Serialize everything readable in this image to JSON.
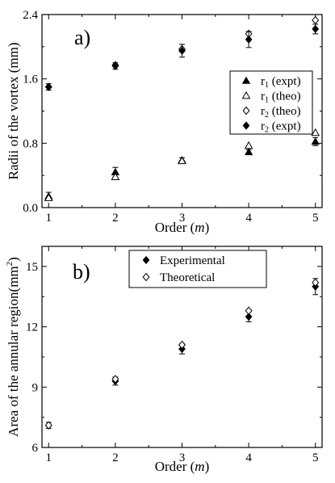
{
  "chart_data": [
    {
      "type": "scatter",
      "panel_label": "a)",
      "xlabel": "Order (",
      "xlabel_var": "m",
      "xlabel_end": ")",
      "ylabel": "Radii of the vortex (mm)",
      "xlim": [
        0.9,
        5.1
      ],
      "ylim": [
        0.0,
        2.4
      ],
      "xticks": [
        1,
        2,
        3,
        4,
        5
      ],
      "yticks": [
        0.0,
        0.8,
        1.6,
        2.4
      ],
      "ytick_labels": [
        "0.0",
        "0.8",
        "1.6",
        "2.4"
      ],
      "legend_position": "upper-right",
      "series": [
        {
          "base": "r",
          "sub": "1",
          "suffix": " (expt)",
          "marker": "triangle-filled",
          "x": [
            1,
            2,
            3,
            4,
            5
          ],
          "y": [
            0.14,
            0.44,
            0.59,
            0.69,
            0.82
          ],
          "err": [
            0.05,
            0.06,
            0.03,
            0.03,
            0.05
          ]
        },
        {
          "base": "r",
          "sub": "1",
          "suffix": " (theo)",
          "marker": "triangle-open",
          "x": [
            1,
            2,
            3,
            4,
            5
          ],
          "y": [
            0.12,
            0.38,
            0.58,
            0.77,
            0.93
          ],
          "err": [
            0,
            0,
            0,
            0,
            0
          ]
        },
        {
          "base": "r",
          "sub": "2",
          "suffix": " (theo)",
          "marker": "diamond-open",
          "x": [
            1,
            2,
            3,
            4,
            5
          ],
          "y": [
            1.5,
            1.77,
            1.97,
            2.16,
            2.33
          ],
          "err": [
            0,
            0,
            0,
            0,
            0
          ]
        },
        {
          "base": "r",
          "sub": "2",
          "suffix": " (expt)",
          "marker": "diamond-filled",
          "x": [
            1,
            2,
            3,
            4,
            5
          ],
          "y": [
            1.5,
            1.76,
            1.95,
            2.09,
            2.22
          ],
          "err": [
            0.04,
            0.04,
            0.08,
            0.1,
            0.06
          ]
        }
      ]
    },
    {
      "type": "scatter",
      "panel_label": "b)",
      "xlabel": "Order (",
      "xlabel_var": "m",
      "xlabel_end": ")",
      "ylabel": "Area of the annular region(mm",
      "ylabel_sup": "2",
      "ylabel_end": ")",
      "xlim": [
        0.9,
        5.1
      ],
      "ylim": [
        6,
        16
      ],
      "xticks": [
        1,
        2,
        3,
        4,
        5
      ],
      "yticks": [
        6,
        9,
        12,
        15
      ],
      "ytick_labels": [
        "6",
        "9",
        "12",
        "15"
      ],
      "legend_position": "upper-center",
      "series": [
        {
          "name": "Experimental",
          "marker": "diamond-filled",
          "x": [
            1,
            2,
            3,
            4,
            5
          ],
          "y": [
            7.1,
            9.3,
            10.9,
            12.5,
            14.0
          ],
          "err": [
            0.15,
            0.2,
            0.25,
            0.25,
            0.4
          ]
        },
        {
          "name": "Theoretical",
          "marker": "diamond-open",
          "x": [
            1,
            2,
            3,
            4,
            5
          ],
          "y": [
            7.1,
            9.4,
            11.1,
            12.8,
            14.2
          ],
          "err": [
            0,
            0,
            0,
            0,
            0
          ]
        }
      ]
    }
  ]
}
